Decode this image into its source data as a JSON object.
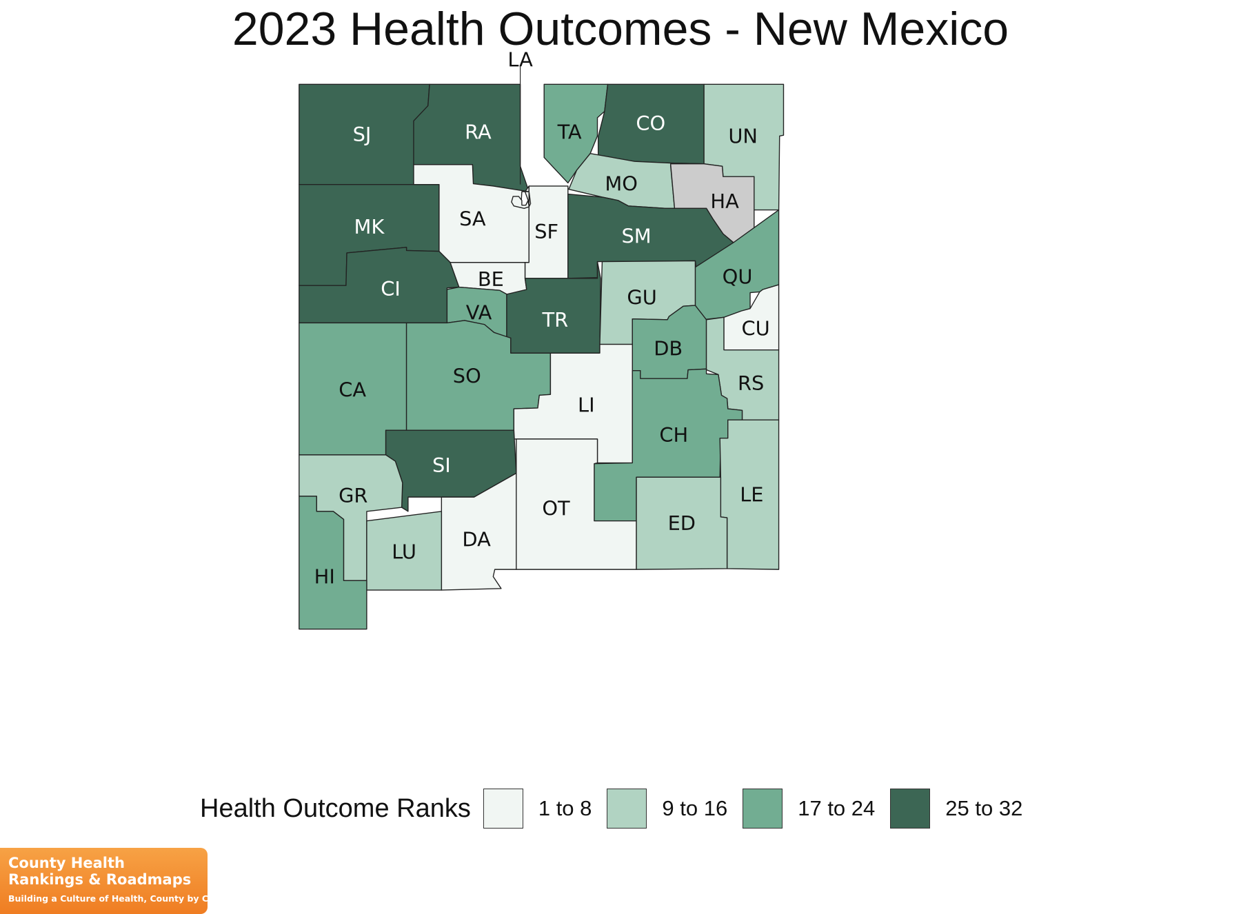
{
  "title": "2023 Health Outcomes - New Mexico",
  "legend": {
    "title": "Health Outcome Ranks",
    "bins": [
      {
        "label": "1 to 8",
        "color": "#f1f6f3"
      },
      {
        "label": "9 to 16",
        "color": "#b1d3c2"
      },
      {
        "label": "17 to 24",
        "color": "#72ad92"
      },
      {
        "label": "25 to 32",
        "color": "#3c6654"
      }
    ],
    "no_data_color": "#cccccc"
  },
  "counties": [
    {
      "abbr": "SJ",
      "rank_bin": "25 to 32"
    },
    {
      "abbr": "RA",
      "rank_bin": "25 to 32"
    },
    {
      "abbr": "TA",
      "rank_bin": "17 to 24"
    },
    {
      "abbr": "CO",
      "rank_bin": "25 to 32"
    },
    {
      "abbr": "UN",
      "rank_bin": "9 to 16"
    },
    {
      "abbr": "MO",
      "rank_bin": "9 to 16"
    },
    {
      "abbr": "HA",
      "rank_bin": "no data"
    },
    {
      "abbr": "MK",
      "rank_bin": "25 to 32"
    },
    {
      "abbr": "SA",
      "rank_bin": "1 to 8"
    },
    {
      "abbr": "SF",
      "rank_bin": "1 to 8"
    },
    {
      "abbr": "LA",
      "rank_bin": "1 to 8"
    },
    {
      "abbr": "SM",
      "rank_bin": "25 to 32"
    },
    {
      "abbr": "QU",
      "rank_bin": "17 to 24"
    },
    {
      "abbr": "CI",
      "rank_bin": "25 to 32"
    },
    {
      "abbr": "BE",
      "rank_bin": "1 to 8"
    },
    {
      "abbr": "VA",
      "rank_bin": "17 to 24"
    },
    {
      "abbr": "TR",
      "rank_bin": "25 to 32"
    },
    {
      "abbr": "GU",
      "rank_bin": "9 to 16"
    },
    {
      "abbr": "CU",
      "rank_bin": "1 to 8"
    },
    {
      "abbr": "DB",
      "rank_bin": "17 to 24"
    },
    {
      "abbr": "RS",
      "rank_bin": "9 to 16"
    },
    {
      "abbr": "CA",
      "rank_bin": "17 to 24"
    },
    {
      "abbr": "SO",
      "rank_bin": "17 to 24"
    },
    {
      "abbr": "LI",
      "rank_bin": "1 to 8"
    },
    {
      "abbr": "CH",
      "rank_bin": "17 to 24"
    },
    {
      "abbr": "SI",
      "rank_bin": "25 to 32"
    },
    {
      "abbr": "GR",
      "rank_bin": "9 to 16"
    },
    {
      "abbr": "OT",
      "rank_bin": "1 to 8"
    },
    {
      "abbr": "LE",
      "rank_bin": "9 to 16"
    },
    {
      "abbr": "ED",
      "rank_bin": "9 to 16"
    },
    {
      "abbr": "DA",
      "rank_bin": "1 to 8"
    },
    {
      "abbr": "LU",
      "rank_bin": "9 to 16"
    },
    {
      "abbr": "HI",
      "rank_bin": "17 to 24"
    }
  ],
  "logo": {
    "line1": "County Health",
    "line2": "Rankings & Roadmaps",
    "tagline": "Building a Culture of Health, County by County"
  }
}
